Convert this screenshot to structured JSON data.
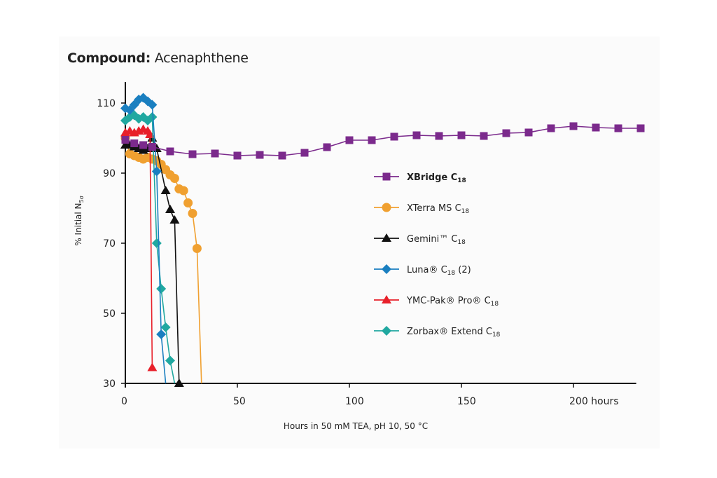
{
  "title": {
    "prefix": "Compound:",
    "compound": "Acenaphthene"
  },
  "chart_data": {
    "type": "line",
    "title": "Compound: Acenaphthene",
    "xlabel": "Hours in 50 mM TEA, pH 10, 50 °C",
    "ylabel": "% Initial N5σ",
    "xlim": [
      0,
      228
    ],
    "ylim": [
      30,
      116
    ],
    "x_ticks": [
      {
        "value": 0,
        "label": "0"
      },
      {
        "value": 50,
        "label": "50"
      },
      {
        "value": 100,
        "label": "100"
      },
      {
        "value": 150,
        "label": "150"
      },
      {
        "value": 200,
        "label": "200 hours"
      }
    ],
    "y_ticks": [
      {
        "value": 110,
        "label": "110"
      },
      {
        "value": 90,
        "label": "90"
      },
      {
        "value": 70,
        "label": "70"
      },
      {
        "value": 50,
        "label": "50"
      },
      {
        "value": 30,
        "label": "30"
      }
    ],
    "grid": false,
    "legend_position": "center-right",
    "series": [
      {
        "name": "XBridge C18",
        "label_main": "XBridge C",
        "label_sub": "18",
        "bold": true,
        "color": "#7b2a8c",
        "marker": "square",
        "x": [
          0,
          4,
          8,
          12,
          20,
          30,
          40,
          50,
          60,
          70,
          80,
          90,
          100,
          110,
          120,
          130,
          140,
          150,
          160,
          170,
          180,
          190,
          200,
          210,
          220,
          230
        ],
        "y": [
          99.5,
          98.5,
          98,
          97.5,
          96.2,
          95.4,
          95.6,
          95,
          95.2,
          95,
          95.8,
          97.4,
          99.4,
          99.4,
          100.4,
          100.8,
          100.6,
          100.8,
          100.6,
          101.4,
          101.6,
          102.8,
          103.4,
          103,
          102.8,
          102.8
        ]
      },
      {
        "name": "XTerra MS C18",
        "label_main": "XTerra MS C",
        "label_sub": "18",
        "bold": false,
        "color": "#f0a030",
        "marker": "circle",
        "x": [
          0,
          2,
          4,
          6,
          8,
          10,
          12,
          14,
          16,
          18,
          20,
          22,
          24,
          26,
          28,
          30,
          32,
          34
        ],
        "y": [
          100,
          95.5,
          95,
          94.5,
          94,
          94.5,
          94,
          93.5,
          92.5,
          91,
          89.5,
          88.5,
          85.5,
          85,
          81.5,
          78.5,
          68.5,
          30
        ]
      },
      {
        "name": "Gemini™ C18",
        "label_main": "Gemini™ C",
        "label_sub": "18",
        "bold": false,
        "color": "#111111",
        "marker": "triangle",
        "x": [
          0,
          2,
          4,
          6,
          8,
          10,
          12,
          14,
          18,
          20,
          22,
          24
        ],
        "y": [
          98,
          98,
          97.5,
          97,
          96.5,
          97,
          100,
          97,
          85,
          79.6,
          76.6,
          30
        ]
      },
      {
        "name": "Luna® C18 (2)",
        "label_main": "Luna® C",
        "label_sub": "18",
        "label_suffix": " (2)",
        "bold": false,
        "color": "#1a7fc0",
        "marker": "diamond",
        "x": [
          0,
          2,
          4,
          6,
          8,
          10,
          12,
          14,
          16,
          18
        ],
        "y": [
          108.5,
          108,
          109.5,
          111,
          111.5,
          110.5,
          109.5,
          90.5,
          44,
          30
        ]
      },
      {
        "name": "YMC-Pak® Pro® C18",
        "label_main": "YMC-Pak® Pro® C",
        "label_sub": "18",
        "bold": false,
        "color": "#e8202a",
        "marker": "triangle",
        "x": [
          0,
          2,
          4,
          6,
          8,
          10,
          11,
          12
        ],
        "y": [
          101.5,
          102,
          101.5,
          102,
          102.5,
          102,
          101,
          34.5
        ]
      },
      {
        "name": "Zorbax® Extend C18",
        "label_main": "Zorbax® Extend C",
        "label_sub": "18",
        "bold": false,
        "color": "#20a8a0",
        "marker": "diamond",
        "x": [
          0,
          2,
          4,
          6,
          8,
          10,
          12,
          14,
          16,
          18,
          20,
          22
        ],
        "y": [
          105,
          106,
          106.5,
          105.5,
          106,
          105,
          106,
          70,
          57,
          46,
          36.5,
          30
        ]
      }
    ]
  }
}
